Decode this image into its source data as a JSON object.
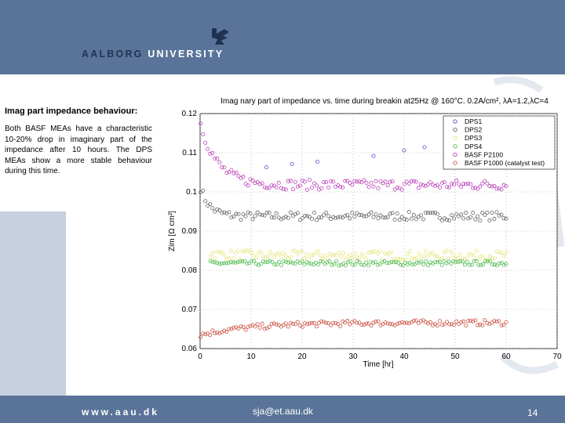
{
  "header": {
    "logo_dim": "AALBORG",
    "logo_bright": "UNIVERSITY"
  },
  "slide": {
    "heading": "Imag part impedance behaviour:",
    "body": "Both BASF MEAs have a characteristic 10-20% drop in imaginary part of the impedance after 10 hours. The DPS MEAs show a more stable behaviour during this time."
  },
  "footer": {
    "url": "www.aau.dk",
    "email": "sja@et.aau.dk",
    "page_number": "14"
  },
  "colors": {
    "brand_blue": "#5a7499",
    "strip_grey": "#c6d0de"
  },
  "chart_data": {
    "type": "scatter",
    "title": "Imag nary part of impedance vs. time during breakin at25Hz @ 160°C. 0.2A/cm², λA=1.2,λC=4",
    "xlabel": "Time [hr]",
    "ylabel": "Zim [Ω cm²]",
    "xlim": [
      0,
      70
    ],
    "ylim": [
      0.06,
      0.12
    ],
    "xticks": [
      "0",
      "10",
      "20",
      "30",
      "40",
      "50",
      "60",
      "70"
    ],
    "yticks": [
      "0.06",
      "0.07",
      "0.08",
      "0.09",
      "0.1",
      "0.11",
      "0.12"
    ],
    "grid": true,
    "legend_position": "top-right",
    "marker": "o",
    "series": [
      {
        "name": "DPS1",
        "color": "#5555cc",
        "points": [
          [
            13,
            0.1063
          ],
          [
            18,
            0.1071
          ],
          [
            23,
            0.1077
          ],
          [
            34,
            0.1092
          ],
          [
            40,
            0.1106
          ],
          [
            44,
            0.1114
          ]
        ]
      },
      {
        "name": "DPS2",
        "color": "#666666",
        "trend": {
          "t0": 0.1,
          "v0": 0.101,
          "v1": 0.0938,
          "k": 0.55
        },
        "noise": 0.0011
      },
      {
        "name": "DPS3",
        "color": "#e6e680",
        "trend": {
          "t0": 2,
          "v0": 0.0842,
          "v1": 0.0838,
          "k": 0.2
        },
        "noise": 0.0012
      },
      {
        "name": "DPS4",
        "color": "#55bb55",
        "trend": {
          "t0": 2,
          "v0": 0.0818,
          "v1": 0.0818,
          "k": 0.2
        },
        "noise": 0.0006
      },
      {
        "name": "BASF P2100",
        "color": "#bb44bb",
        "trend": {
          "t0": 0.1,
          "v0": 0.1175,
          "v1": 0.1018,
          "k": 0.3
        },
        "noise": 0.0013
      },
      {
        "name": "BASF P1000 (catalyst test)",
        "color": "#cc5544",
        "trend": {
          "t0": 0.1,
          "v0": 0.0635,
          "v1": 0.0666,
          "k": 0.1
        },
        "noise": 0.0007
      }
    ]
  }
}
